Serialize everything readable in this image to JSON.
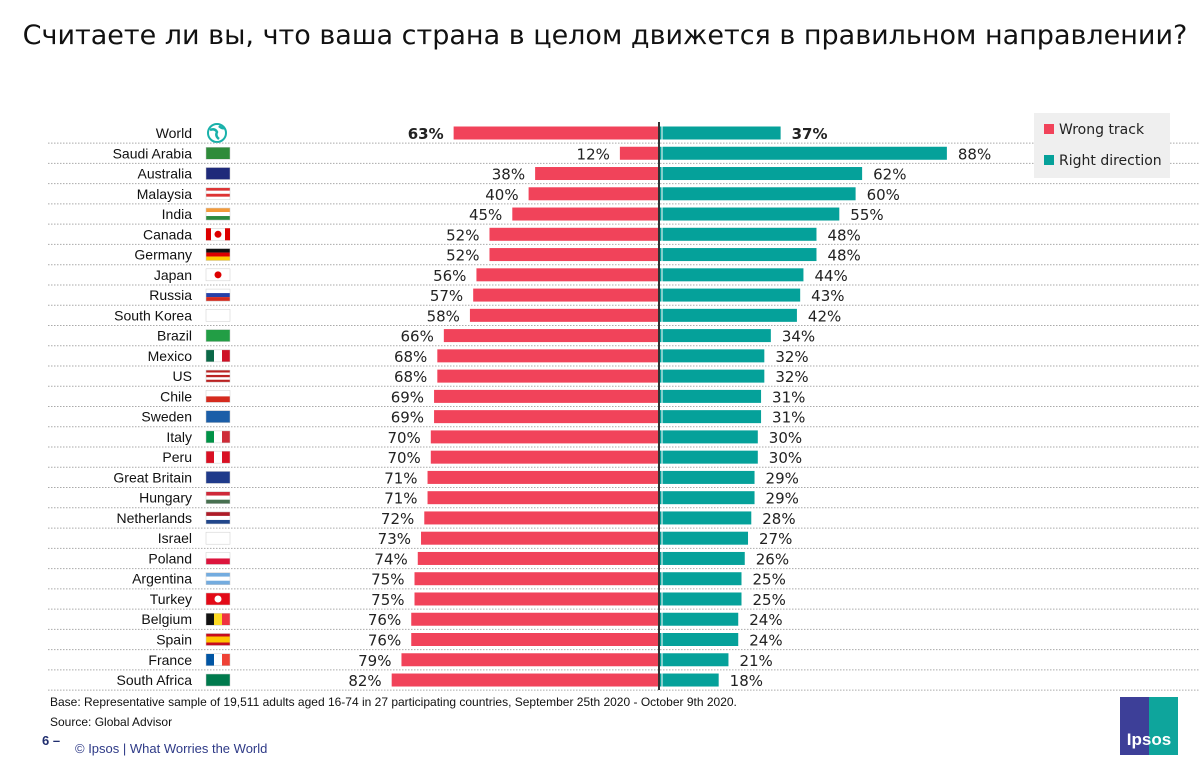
{
  "title": "Считаете ли вы, что ваша страна в целом движется в правильном направлении?",
  "colors": {
    "wrong": "#f1435a",
    "right": "#05a19a"
  },
  "legend": {
    "wrong": "Wrong track",
    "right": "Right direction"
  },
  "footer": {
    "base": "Base: Representative sample of 19,511 adults aged 16-74 in 27 participating countries, September 25th 2020 - October 9th 2020.",
    "source": "Source: Global Advisor",
    "page": "6 –",
    "copyright": "© Ipsos | What Worries the World",
    "logo": "Ipsos"
  },
  "chart_data": {
    "type": "bar",
    "orientation": "horizontal-diverging",
    "categories": [
      "World",
      "Saudi Arabia",
      "Australia",
      "Malaysia",
      "India",
      "Canada",
      "Germany",
      "Japan",
      "Russia",
      "South Korea",
      "Brazil",
      "Mexico",
      "US",
      "Chile",
      "Sweden",
      "Italy",
      "Peru",
      "Great Britain",
      "Hungary",
      "Netherlands",
      "Israel",
      "Poland",
      "Argentina",
      "Turkey",
      "Belgium",
      "Spain",
      "France",
      "South Africa"
    ],
    "flags": [
      "globe-icon",
      "flag-saudi-arabia",
      "flag-australia",
      "flag-malaysia",
      "flag-india",
      "flag-canada",
      "flag-germany",
      "flag-japan",
      "flag-russia",
      "flag-south-korea",
      "flag-brazil",
      "flag-mexico",
      "flag-us",
      "flag-chile",
      "flag-sweden",
      "flag-italy",
      "flag-peru",
      "flag-great-britain",
      "flag-hungary",
      "flag-netherlands",
      "flag-israel",
      "flag-poland",
      "flag-argentina",
      "flag-turkey",
      "flag-belgium",
      "flag-spain",
      "flag-france",
      "flag-south-africa"
    ],
    "series": [
      {
        "name": "Wrong track",
        "values": [
          63,
          12,
          38,
          40,
          45,
          52,
          52,
          56,
          57,
          58,
          66,
          68,
          68,
          69,
          69,
          70,
          70,
          71,
          71,
          72,
          73,
          74,
          75,
          75,
          76,
          76,
          79,
          82
        ]
      },
      {
        "name": "Right direction",
        "values": [
          37,
          88,
          62,
          60,
          55,
          48,
          48,
          44,
          43,
          42,
          34,
          32,
          32,
          31,
          31,
          30,
          30,
          29,
          29,
          28,
          27,
          26,
          25,
          25,
          24,
          24,
          21,
          18
        ]
      }
    ],
    "unit": "%",
    "legend_position": "top-right"
  }
}
